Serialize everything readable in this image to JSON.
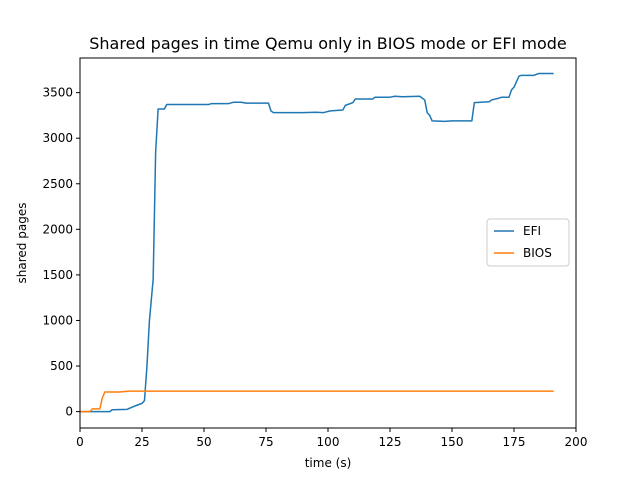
{
  "chart_data": {
    "type": "line",
    "title": "Shared pages in time Qemu only in BIOS mode or EFI mode",
    "xlabel": "time (s)",
    "ylabel": "shared pages",
    "xlim": [
      0,
      200
    ],
    "ylim": [
      -180,
      3880
    ],
    "xticks": [
      0,
      25,
      50,
      75,
      100,
      125,
      150,
      175,
      200
    ],
    "yticks": [
      0,
      500,
      1000,
      1500,
      2000,
      2500,
      3000,
      3500
    ],
    "grid": false,
    "legend": "center-right",
    "series": [
      {
        "name": "EFI",
        "color": "#1f77b4",
        "points": [
          [
            0,
            0
          ],
          [
            12,
            0
          ],
          [
            13,
            20
          ],
          [
            19,
            25
          ],
          [
            22,
            60
          ],
          [
            25,
            90
          ],
          [
            26,
            120
          ],
          [
            27,
            500
          ],
          [
            28,
            1000
          ],
          [
            29.5,
            1450
          ],
          [
            30.5,
            2850
          ],
          [
            31.5,
            3320
          ],
          [
            34,
            3320
          ],
          [
            35,
            3370
          ],
          [
            52,
            3370
          ],
          [
            53,
            3380
          ],
          [
            60,
            3380
          ],
          [
            62,
            3395
          ],
          [
            65,
            3395
          ],
          [
            67,
            3385
          ],
          [
            76,
            3385
          ],
          [
            77,
            3300
          ],
          [
            78,
            3280
          ],
          [
            90,
            3280
          ],
          [
            95,
            3285
          ],
          [
            98,
            3280
          ],
          [
            101,
            3300
          ],
          [
            106,
            3310
          ],
          [
            107,
            3360
          ],
          [
            110,
            3390
          ],
          [
            111,
            3430
          ],
          [
            118,
            3430
          ],
          [
            119,
            3450
          ],
          [
            125,
            3450
          ],
          [
            127,
            3460
          ],
          [
            130,
            3455
          ],
          [
            137,
            3460
          ],
          [
            139,
            3420
          ],
          [
            140,
            3280
          ],
          [
            141,
            3250
          ],
          [
            142,
            3190
          ],
          [
            147,
            3185
          ],
          [
            150,
            3190
          ],
          [
            157,
            3190
          ],
          [
            158,
            3190
          ],
          [
            159,
            3390
          ],
          [
            165,
            3400
          ],
          [
            166,
            3420
          ],
          [
            169,
            3440
          ],
          [
            170,
            3450
          ],
          [
            173,
            3450
          ],
          [
            174,
            3530
          ],
          [
            175,
            3560
          ],
          [
            177,
            3680
          ],
          [
            178,
            3690
          ],
          [
            183,
            3690
          ],
          [
            185,
            3710
          ],
          [
            191,
            3710
          ]
        ]
      },
      {
        "name": "BIOS",
        "color": "#ff7f0e",
        "points": [
          [
            0,
            0
          ],
          [
            4,
            0
          ],
          [
            5,
            30
          ],
          [
            8,
            30
          ],
          [
            9,
            150
          ],
          [
            10,
            215
          ],
          [
            16,
            215
          ],
          [
            18,
            220
          ],
          [
            20,
            225
          ],
          [
            30,
            225
          ],
          [
            191,
            225
          ]
        ]
      }
    ]
  }
}
